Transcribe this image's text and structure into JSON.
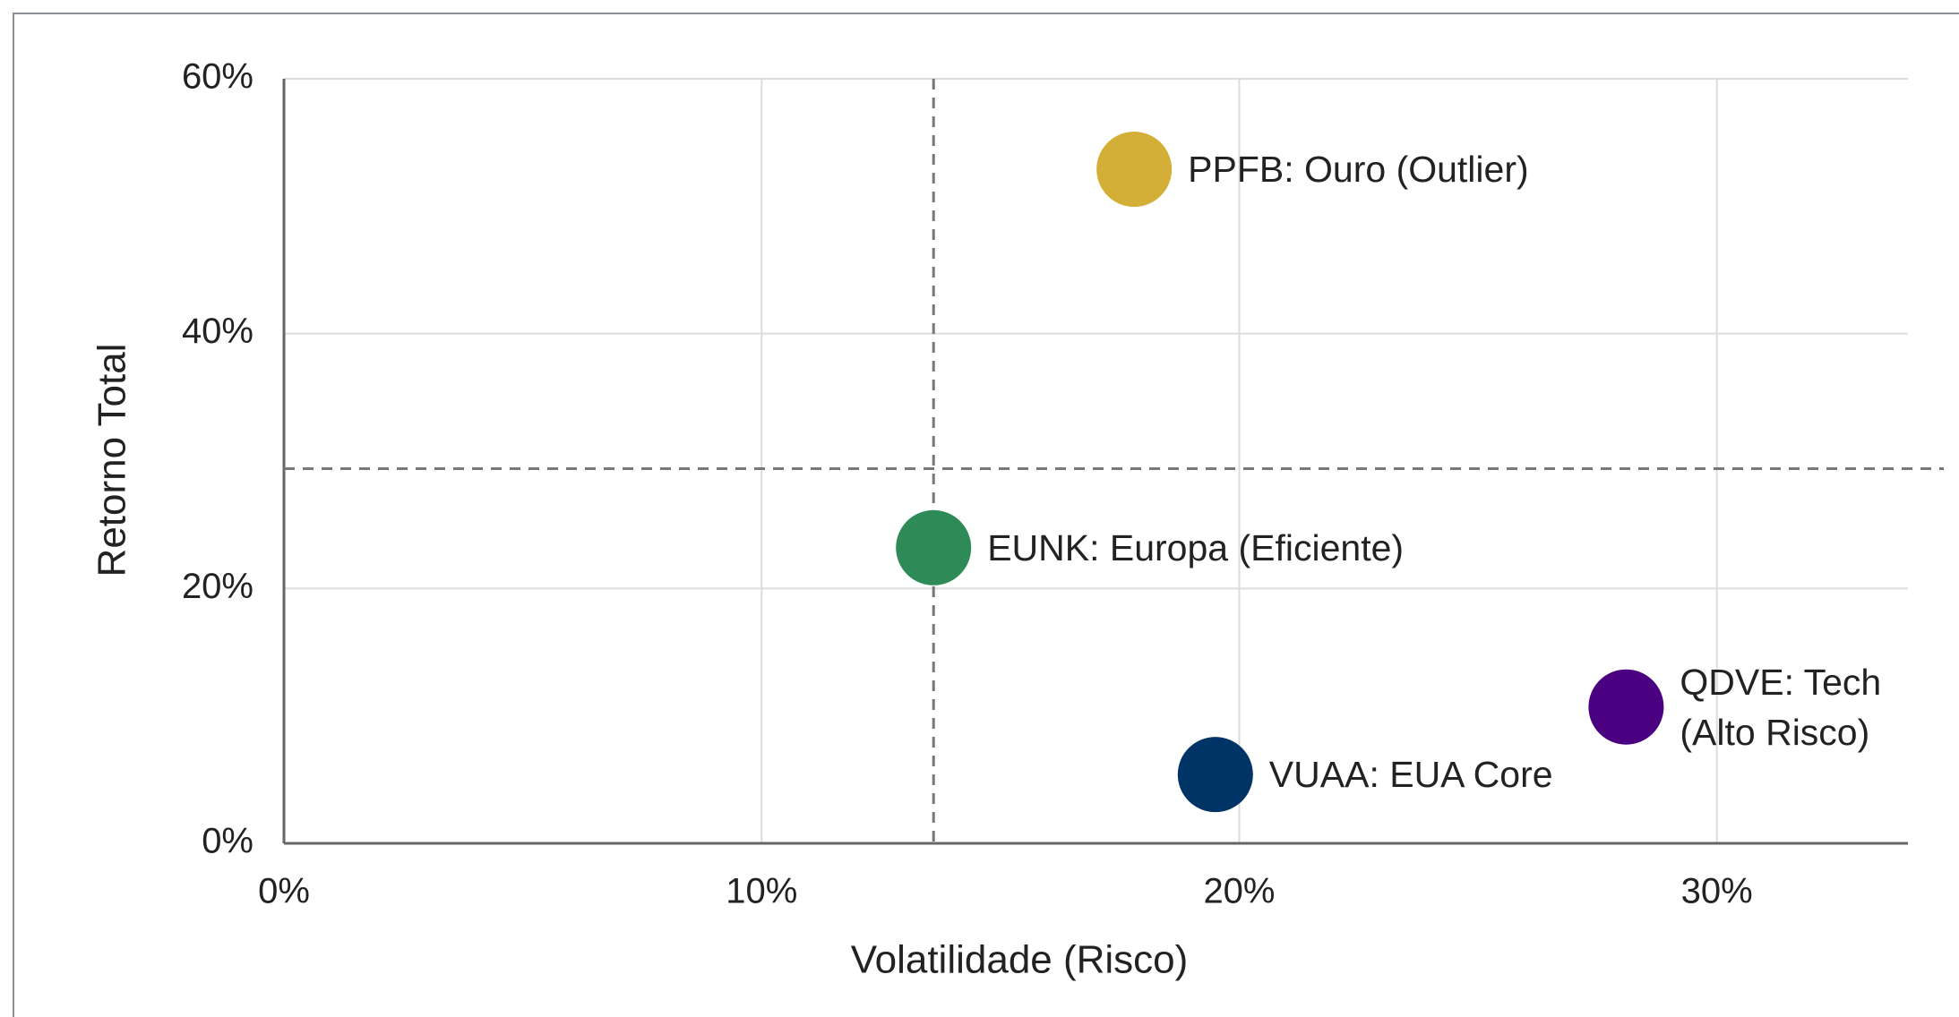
{
  "chart_data": {
    "type": "scatter",
    "x_label": "Volatilidade (Risco)",
    "y_label": "Retorno Total",
    "points": [
      {
        "label": "PPFB: Ouro (Outlier)",
        "x": 17.8,
        "y": 52.9,
        "color": "#d4af37"
      },
      {
        "label": "EUNK: Europa (Eficiente)",
        "x": 13.6,
        "y": 23.2,
        "color": "#2e8b57"
      },
      {
        "label": "VUAA: EUA Core",
        "x": 19.5,
        "y": 5.4,
        "color": "#003366"
      },
      {
        "label": "QDVE: Tech (Alto Risco)",
        "x": 28.1,
        "y": 10.7,
        "color": "#4b0082"
      }
    ],
    "reference_lines": {
      "x": 13.6,
      "y": 29.4
    },
    "xlim": [
      0,
      34
    ],
    "ylim": [
      0,
      60
    ],
    "xticks": [
      {
        "value": 0,
        "label": "0%"
      },
      {
        "value": 10,
        "label": "10%"
      },
      {
        "value": 20,
        "label": "20%"
      },
      {
        "value": 30,
        "label": "30%"
      }
    ],
    "yticks": [
      {
        "value": 0,
        "label": "0%"
      },
      {
        "value": 20,
        "label": "20%"
      },
      {
        "value": 40,
        "label": "40%"
      },
      {
        "value": 60,
        "label": "60%"
      }
    ],
    "grid": true
  }
}
